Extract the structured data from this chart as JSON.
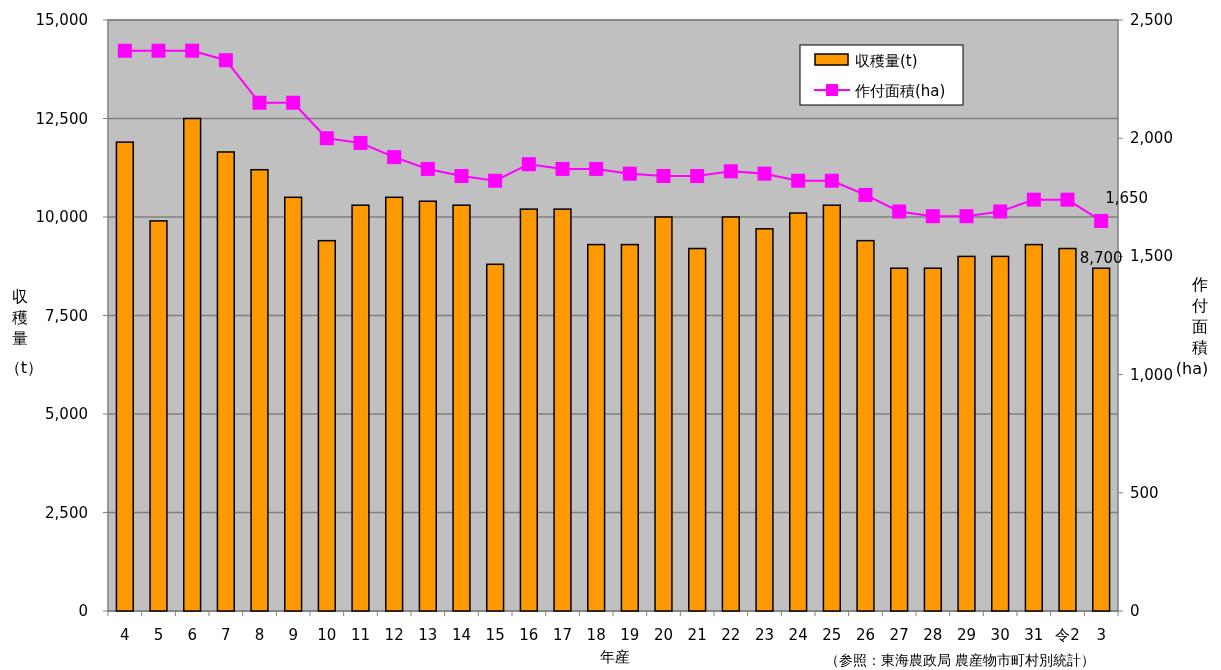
{
  "chart_data": {
    "type": "bar",
    "categories": [
      "4",
      "5",
      "6",
      "7",
      "8",
      "9",
      "10",
      "11",
      "12",
      "13",
      "14",
      "15",
      "16",
      "17",
      "18",
      "19",
      "20",
      "21",
      "22",
      "23",
      "24",
      "25",
      "26",
      "27",
      "28",
      "29",
      "30",
      "31",
      "令2",
      "3"
    ],
    "xlabel": "年産",
    "ylabel": "収穫量（t）",
    "y2label": "作付面積(ha)",
    "ylim": [
      0,
      15000
    ],
    "yticks": [
      {
        "value": 0,
        "label": "0"
      },
      {
        "value": 2500,
        "label": "2,500"
      },
      {
        "value": 5000,
        "label": "5,000"
      },
      {
        "value": 7500,
        "label": "7,500"
      },
      {
        "value": 10000,
        "label": "10,000"
      },
      {
        "value": 12500,
        "label": "12,500"
      },
      {
        "value": 15000,
        "label": "15,000"
      }
    ],
    "y2lim": [
      0,
      2500
    ],
    "y2ticks": [
      {
        "value": 0,
        "label": "0"
      },
      {
        "value": 500,
        "label": "500"
      },
      {
        "value": 1000,
        "label": "1,000"
      },
      {
        "value": 1500,
        "label": "1,500"
      },
      {
        "value": 2000,
        "label": "2,000"
      },
      {
        "value": 2500,
        "label": "2,500"
      }
    ],
    "grid": "y",
    "legend": "top right",
    "series": [
      {
        "name": "収穫量(t)",
        "color": "#ff9900",
        "values": [
          11900,
          9900,
          12500,
          11650,
          11200,
          10500,
          9400,
          10300,
          10500,
          10400,
          10300,
          8800,
          10200,
          10200,
          9300,
          9300,
          10000,
          9200,
          10000,
          9700,
          10100,
          10300,
          9400,
          8700,
          8700,
          9000,
          9000,
          9300,
          9200,
          8700
        ],
        "value_labels": [
          null,
          null,
          null,
          null,
          null,
          null,
          null,
          null,
          null,
          null,
          null,
          null,
          null,
          null,
          null,
          null,
          null,
          null,
          null,
          null,
          null,
          null,
          null,
          null,
          null,
          null,
          null,
          null,
          null,
          "8,700"
        ]
      },
      {
        "name": "作付面積(ha)",
        "type": "line",
        "axis": "y2",
        "color": "#ff00ff",
        "marker": "square",
        "values": [
          2370,
          2370,
          2370,
          2330,
          2150,
          2150,
          2000,
          1980,
          1920,
          1870,
          1840,
          1820,
          1890,
          1870,
          1870,
          1850,
          1840,
          1840,
          1860,
          1850,
          1820,
          1820,
          1760,
          1690,
          1670,
          1670,
          1690,
          1740,
          1740,
          1650
        ],
        "value_labels": [
          null,
          null,
          null,
          null,
          null,
          null,
          null,
          null,
          null,
          null,
          null,
          null,
          null,
          null,
          null,
          null,
          null,
          null,
          null,
          null,
          null,
          null,
          null,
          null,
          null,
          null,
          null,
          null,
          null,
          "1,650"
        ]
      }
    ],
    "annotations": [
      "（参照：東海農政局 農産物市町村別統計）"
    ]
  }
}
